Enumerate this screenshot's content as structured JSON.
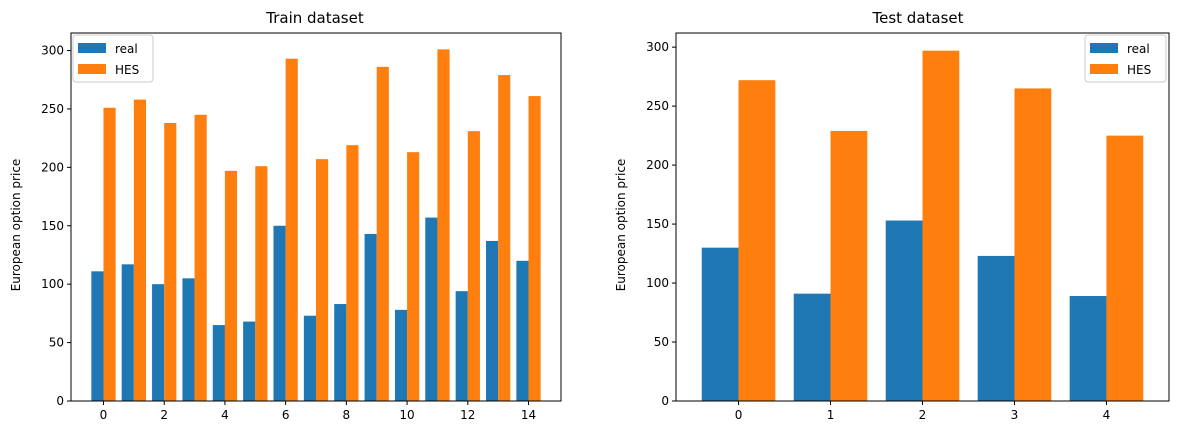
{
  "colors": {
    "real": "#1f77b4",
    "HES": "#ff7f0e"
  },
  "chart_data": [
    {
      "type": "bar",
      "title": "Train dataset",
      "xlabel": "",
      "ylabel": "European option price",
      "categories": [
        0,
        1,
        2,
        3,
        4,
        5,
        6,
        7,
        8,
        9,
        10,
        11,
        12,
        13,
        14
      ],
      "xticks": [
        "0",
        "2",
        "4",
        "6",
        "8",
        "10",
        "12",
        "14"
      ],
      "yticks": [
        "0",
        "50",
        "100",
        "150",
        "200",
        "250",
        "300"
      ],
      "ylim": [
        0,
        315
      ],
      "legend": {
        "position": "top-left",
        "entries": [
          "real",
          "HES"
        ]
      },
      "series": [
        {
          "name": "real",
          "values": [
            111,
            117,
            100,
            105,
            65,
            68,
            150,
            73,
            83,
            143,
            78,
            157,
            94,
            137,
            120
          ]
        },
        {
          "name": "HES",
          "values": [
            251,
            258,
            238,
            245,
            197,
            201,
            293,
            207,
            219,
            286,
            213,
            301,
            231,
            279,
            261
          ]
        }
      ]
    },
    {
      "type": "bar",
      "title": "Test dataset",
      "xlabel": "",
      "ylabel": "European option price",
      "categories": [
        0,
        1,
        2,
        3,
        4
      ],
      "xticks": [
        "0",
        "1",
        "2",
        "3",
        "4"
      ],
      "yticks": [
        "0",
        "50",
        "100",
        "150",
        "200",
        "250",
        "300"
      ],
      "ylim": [
        0,
        312
      ],
      "legend": {
        "position": "top-right",
        "entries": [
          "real",
          "HES"
        ]
      },
      "series": [
        {
          "name": "real",
          "values": [
            130,
            91,
            153,
            123,
            89
          ]
        },
        {
          "name": "HES",
          "values": [
            272,
            229,
            297,
            265,
            225
          ]
        }
      ]
    }
  ]
}
